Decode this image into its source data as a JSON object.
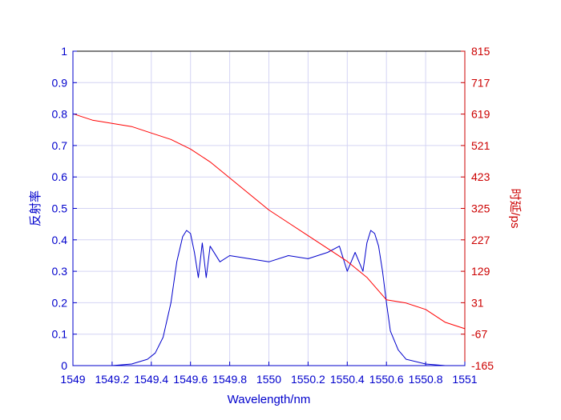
{
  "chart_data": {
    "type": "line",
    "xlabel": "Wavelength/nm",
    "ylabel_left": "反射率",
    "ylabel_right": "时延/ps",
    "xlim": [
      1549,
      1551
    ],
    "ylim_left": [
      0,
      1
    ],
    "ylim_right": [
      -165,
      815
    ],
    "grid": true,
    "x_ticks": [
      "1549",
      "1549.2",
      "1549.4",
      "1549.6",
      "1549.8",
      "1550",
      "1550.2",
      "1550.4",
      "1550.6",
      "1550.8",
      "1551"
    ],
    "x_tick_values": [
      1549,
      1549.2,
      1549.4,
      1549.6,
      1549.8,
      1550,
      1550.2,
      1550.4,
      1550.6,
      1550.8,
      1551
    ],
    "y_left_ticks": [
      "0",
      "0.1",
      "0.2",
      "0.3",
      "0.4",
      "0.5",
      "0.6",
      "0.7",
      "0.8",
      "0.9",
      "1"
    ],
    "y_left_tick_values": [
      0,
      0.1,
      0.2,
      0.3,
      0.4,
      0.5,
      0.6,
      0.7,
      0.8,
      0.9,
      1
    ],
    "y_right_ticks": [
      "-165",
      "-67",
      "31",
      "129",
      "227",
      "325",
      "423",
      "521",
      "619",
      "717",
      "815"
    ],
    "y_right_tick_values": [
      -165,
      -67,
      31,
      129,
      227,
      325,
      423,
      521,
      619,
      717,
      815
    ],
    "series": [
      {
        "axis": "left",
        "color": "#0000cc",
        "x": [
          1549.0,
          1549.2,
          1549.3,
          1549.38,
          1549.42,
          1549.46,
          1549.5,
          1549.53,
          1549.56,
          1549.58,
          1549.6,
          1549.62,
          1549.64,
          1549.66,
          1549.68,
          1549.7,
          1549.75,
          1549.8,
          1549.9,
          1550.0,
          1550.1,
          1550.2,
          1550.3,
          1550.36,
          1550.4,
          1550.44,
          1550.48,
          1550.5,
          1550.52,
          1550.54,
          1550.56,
          1550.58,
          1550.6,
          1550.62,
          1550.66,
          1550.7,
          1550.8,
          1550.9,
          1551.0
        ],
        "y": [
          0.0,
          0.0,
          0.005,
          0.02,
          0.04,
          0.09,
          0.2,
          0.33,
          0.41,
          0.43,
          0.42,
          0.36,
          0.28,
          0.39,
          0.28,
          0.38,
          0.33,
          0.35,
          0.34,
          0.33,
          0.35,
          0.34,
          0.36,
          0.38,
          0.3,
          0.36,
          0.3,
          0.39,
          0.43,
          0.42,
          0.38,
          0.3,
          0.2,
          0.11,
          0.05,
          0.02,
          0.005,
          0.0,
          0.0
        ]
      },
      {
        "axis": "right",
        "color": "#ff0000",
        "x": [
          1549.0,
          1549.05,
          1549.1,
          1549.2,
          1549.3,
          1549.4,
          1549.5,
          1549.6,
          1549.7,
          1549.8,
          1549.9,
          1550.0,
          1550.1,
          1550.2,
          1550.3,
          1550.4,
          1550.5,
          1550.6,
          1550.7,
          1550.8,
          1550.9,
          1551.0
        ],
        "y": [
          620,
          610,
          600,
          590,
          580,
          560,
          540,
          510,
          470,
          420,
          370,
          320,
          280,
          240,
          200,
          160,
          110,
          40,
          30,
          10,
          -30,
          -50
        ]
      }
    ]
  }
}
